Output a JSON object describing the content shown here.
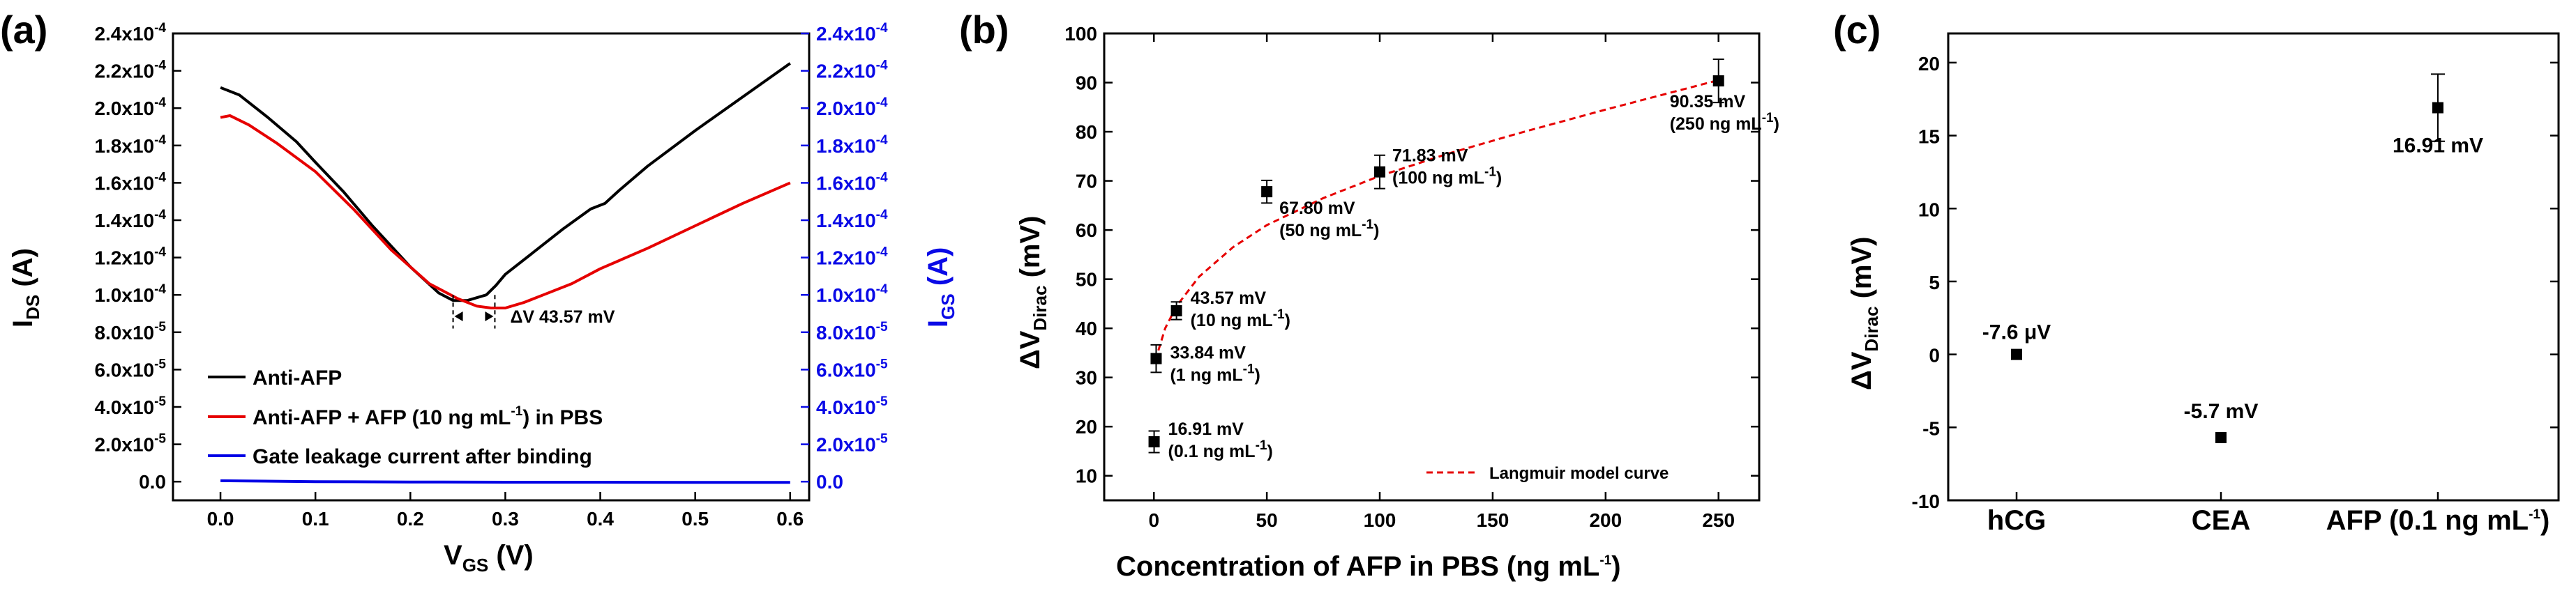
{
  "chart_data": [
    {
      "panel": "a",
      "panel_label": "(a)",
      "type": "line",
      "xlabel": "V",
      "xlabel_sub": "GS",
      "xlabel_unit": " (V)",
      "ylabel": "I",
      "ylabel_sub": "DS",
      "ylabel_unit": " (A)",
      "y2label": "I",
      "y2label_sub": "GS",
      "y2label_unit": " (A)",
      "xlim": [
        -0.05,
        0.62
      ],
      "ylim": [
        -1e-05,
        0.00024
      ],
      "xticks": [
        "0.0",
        "0.1",
        "0.2",
        "0.3",
        "0.4",
        "0.5",
        "0.6"
      ],
      "yticks": [
        {
          "mant": "0.0",
          "exp": ""
        },
        {
          "mant": "2.0x10",
          "exp": "-5"
        },
        {
          "mant": "4.0x10",
          "exp": "-5"
        },
        {
          "mant": "6.0x10",
          "exp": "-5"
        },
        {
          "mant": "8.0x10",
          "exp": "-5"
        },
        {
          "mant": "1.0x10",
          "exp": "-4"
        },
        {
          "mant": "1.2x10",
          "exp": "-4"
        },
        {
          "mant": "1.4x10",
          "exp": "-4"
        },
        {
          "mant": "1.6x10",
          "exp": "-4"
        },
        {
          "mant": "1.8x10",
          "exp": "-4"
        },
        {
          "mant": "2.0x10",
          "exp": "-4"
        },
        {
          "mant": "2.2x10",
          "exp": "-4"
        },
        {
          "mant": "2.4x10",
          "exp": "-4"
        }
      ],
      "series": [
        {
          "name": "Anti-AFP",
          "color": "#000000",
          "x": [
            0.0,
            0.02,
            0.05,
            0.08,
            0.1,
            0.13,
            0.16,
            0.2,
            0.23,
            0.245,
            0.26,
            0.27,
            0.28,
            0.29,
            0.3,
            0.33,
            0.36,
            0.39,
            0.405,
            0.42,
            0.45,
            0.5,
            0.55,
            0.6
          ],
          "y": [
            0.000211,
            0.000207,
            0.000195,
            0.000182,
            0.000171,
            0.000155,
            0.000137,
            0.000115,
            0.000101,
            9.7e-05,
            9.7e-05,
            9.85e-05,
            0.0001,
            0.000105,
            0.000111,
            0.000123,
            0.000135,
            0.000146,
            0.000149,
            0.000156,
            0.000169,
            0.000188,
            0.000206,
            0.000224
          ]
        },
        {
          "name": "Anti-AFP  + AFP (10 ng mL",
          "name_sup": "-1",
          "name_tail": ") in PBS",
          "color": "#e60000",
          "x": [
            0.0,
            0.01,
            0.03,
            0.06,
            0.1,
            0.14,
            0.18,
            0.22,
            0.25,
            0.27,
            0.285,
            0.3,
            0.32,
            0.34,
            0.37,
            0.4,
            0.45,
            0.5,
            0.55,
            0.6
          ],
          "y": [
            0.000195,
            0.000196,
            0.000191,
            0.000181,
            0.000166,
            0.000146,
            0.000124,
            0.000106,
            9.8e-05,
            9.4e-05,
            9.3e-05,
            9.3e-05,
            9.6e-05,
            0.0001,
            0.000106,
            0.000114,
            0.000125,
            0.000137,
            0.000149,
            0.00016
          ]
        },
        {
          "name": "Gate leakage current after binding",
          "color": "#0000e6",
          "x": [
            0.0,
            0.1,
            0.2,
            0.3,
            0.4,
            0.5,
            0.6
          ],
          "y": [
            5e-07,
            0.0,
            -2e-07,
            -3e-07,
            -3e-07,
            -4e-07,
            -4e-07
          ]
        }
      ],
      "annotation": {
        "text": "ΔV 43.57 mV",
        "x1": 0.245,
        "x2": 0.289
      }
    },
    {
      "panel": "b",
      "panel_label": "(b)",
      "type": "scatter",
      "xlabel": "Concentration of AFP in PBS (ng mL",
      "xlabel_sup": "-1",
      "xlabel_tail": ")",
      "ylabel": "ΔV",
      "ylabel_sub": "Dirac",
      "ylabel_unit": " (mV)",
      "xlim": [
        -22,
        268
      ],
      "ylim": [
        5,
        100
      ],
      "xticks": [
        0,
        50,
        100,
        150,
        200,
        250
      ],
      "yticks": [
        10,
        20,
        30,
        40,
        50,
        60,
        70,
        80,
        90,
        100
      ],
      "points": [
        {
          "x": 0.1,
          "y": 16.91,
          "err": 2.2,
          "label": "16.91 mV",
          "conc": "(0.1 ng mL",
          "unit_sup": "-1",
          "unit_tail": ")"
        },
        {
          "x": 1,
          "y": 33.84,
          "err": 2.8,
          "label": "33.84 mV",
          "conc": "(1 ng mL",
          "unit_sup": "-1",
          "unit_tail": ")"
        },
        {
          "x": 10,
          "y": 43.57,
          "err": 1.8,
          "label": "43.57 mV",
          "conc": "(10 ng mL",
          "unit_sup": "-1",
          "unit_tail": ")"
        },
        {
          "x": 50,
          "y": 67.8,
          "err": 2.3,
          "label": "67.80 mV",
          "conc": "(50 ng mL",
          "unit_sup": "-1",
          "unit_tail": ")"
        },
        {
          "x": 100,
          "y": 71.83,
          "err": 3.4,
          "label": "71.83 mV",
          "conc": "(100 ng mL",
          "unit_sup": "-1",
          "unit_tail": ")"
        },
        {
          "x": 250,
          "y": 90.35,
          "err": 4.4,
          "label": "90.35 mV",
          "conc": "(250 ng mL",
          "unit_sup": "-1",
          "unit_tail": ")"
        }
      ],
      "fit": {
        "name": "Langmuir model curve",
        "color": "#e60000",
        "x": [
          2,
          5,
          10,
          20,
          35,
          50,
          75,
          100,
          130,
          160,
          200,
          250
        ],
        "y": [
          35.5,
          40.0,
          44.5,
          50.5,
          56.5,
          61.0,
          66.5,
          71.0,
          75.5,
          79.5,
          84.5,
          90.5
        ]
      }
    },
    {
      "panel": "c",
      "panel_label": "(c)",
      "type": "scatter",
      "xlabel": "",
      "ylabel": "ΔV",
      "ylabel_sub": "Dirac",
      "ylabel_unit": " (mV)",
      "ylim": [
        -10,
        22
      ],
      "yticks": [
        -10,
        -5,
        0,
        5,
        10,
        15,
        20
      ],
      "categories": [
        "hCG",
        "CEA",
        "AFP (0.1 ng mL"
      ],
      "category_sups": [
        "",
        "",
        "-1"
      ],
      "category_tails": [
        "",
        "",
        ")"
      ],
      "points": [
        {
          "category": "hCG",
          "y": 0.0,
          "err": 0,
          "label": "-7.6 μV"
        },
        {
          "category": "CEA",
          "y": -5.7,
          "err": 0,
          "label": "-5.7 mV"
        },
        {
          "category": "AFP (0.1 ng mL-1)",
          "y": 16.91,
          "err": 2.3,
          "label": "16.91 mV"
        }
      ]
    }
  ]
}
